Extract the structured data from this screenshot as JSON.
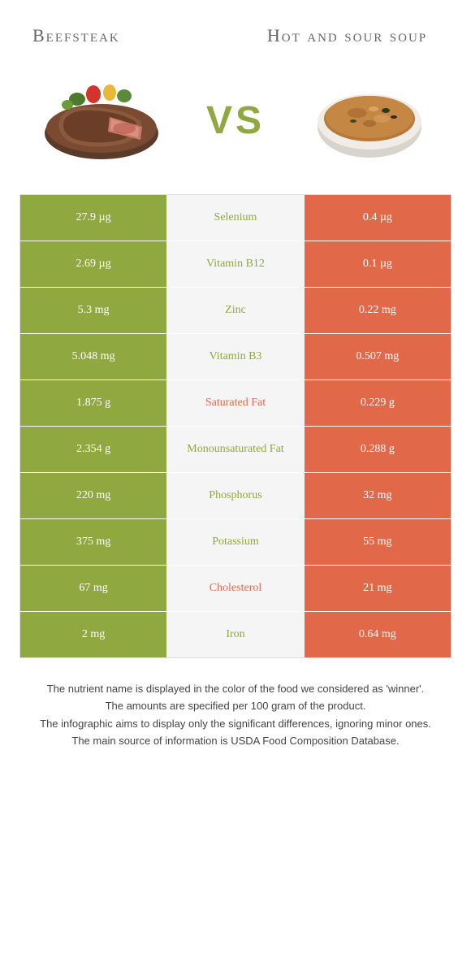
{
  "colors": {
    "green": "#8fa83f",
    "orange": "#e2684a",
    "mid_bg": "#f5f5f5",
    "title_color": "#666666"
  },
  "foods": {
    "left": {
      "title": "Beefsteak"
    },
    "right": {
      "title": "Hot and sour soup"
    }
  },
  "vs_label": "VS",
  "nutrients": [
    {
      "name": "Selenium",
      "left": "27.9 µg",
      "right": "0.4 µg",
      "winner": "left"
    },
    {
      "name": "Vitamin B12",
      "left": "2.69 µg",
      "right": "0.1 µg",
      "winner": "left"
    },
    {
      "name": "Zinc",
      "left": "5.3 mg",
      "right": "0.22 mg",
      "winner": "left"
    },
    {
      "name": "Vitamin B3",
      "left": "5.048 mg",
      "right": "0.507 mg",
      "winner": "left"
    },
    {
      "name": "Saturated Fat",
      "left": "1.875 g",
      "right": "0.229 g",
      "winner": "right"
    },
    {
      "name": "Monounsaturated Fat",
      "left": "2.354 g",
      "right": "0.288 g",
      "winner": "left"
    },
    {
      "name": "Phosphorus",
      "left": "220 mg",
      "right": "32 mg",
      "winner": "left"
    },
    {
      "name": "Potassium",
      "left": "375 mg",
      "right": "55 mg",
      "winner": "left"
    },
    {
      "name": "Cholesterol",
      "left": "67 mg",
      "right": "21 mg",
      "winner": "right"
    },
    {
      "name": "Iron",
      "left": "2 mg",
      "right": "0.64 mg",
      "winner": "left"
    }
  ],
  "footnotes": [
    "The nutrient name is displayed in the color of the food we considered as 'winner'.",
    "The amounts are specified per 100 gram of the product.",
    "The infographic aims to display only the significant differences, ignoring minor ones.",
    "The main source of information is USDA Food Composition Database."
  ]
}
